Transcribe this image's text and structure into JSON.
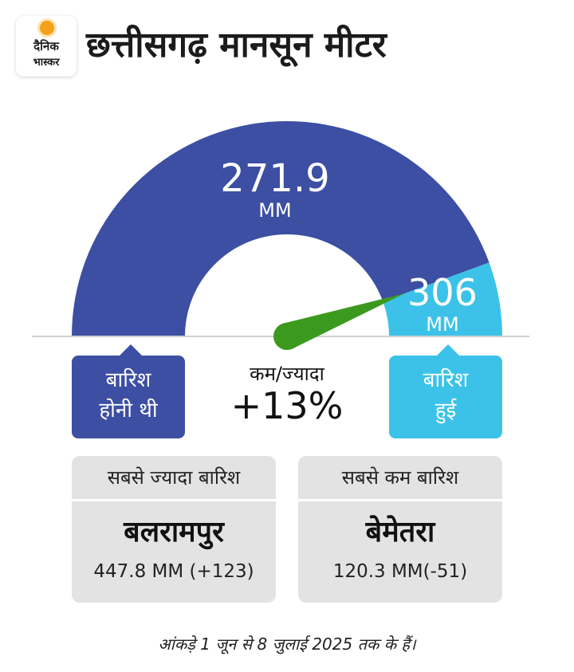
{
  "header": {
    "logo_line1": "दैनिक",
    "logo_line2": "भास्कर",
    "title": "छत्तीसगढ़ मानसून मीटर"
  },
  "chart_data": {
    "type": "gauge",
    "planned": {
      "value": "271.9",
      "unit": "MM",
      "label_line1": "बारिश",
      "label_line2": "होनी थी",
      "color": "#3c4fa3"
    },
    "actual": {
      "value": "306",
      "unit": "MM",
      "label_line1": "बारिश",
      "label_line2": "हुई",
      "color": "#3cc2e8"
    },
    "planned_num": 271.9,
    "actual_num": 306,
    "difference": {
      "label": "कम/ज्यादा",
      "value": "+13%"
    },
    "needle_color": "#3b9a1e"
  },
  "stats": {
    "max": {
      "heading": "सबसे ज्यादा बारिश",
      "district": "बलरामपुर",
      "value": "447.8 MM (+123)"
    },
    "min": {
      "heading": "सबसे कम बारिश",
      "district": "बेमेतरा",
      "value": "120.3 MM(-51)"
    }
  },
  "footnote": "आंकड़े 1 जून से 8 जुलाई 2025 तक के हैं।"
}
